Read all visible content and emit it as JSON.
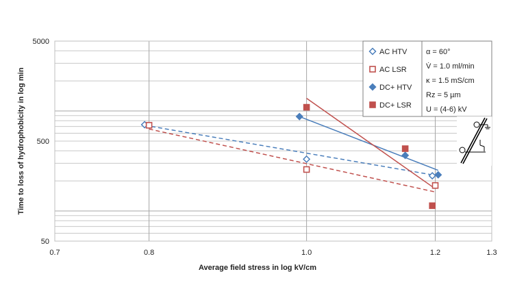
{
  "chart_data": {
    "type": "scatter",
    "xlabel": "Average field stress in log kV/cm",
    "ylabel": "Time to loss of hydrophobicity in log min",
    "xscale": "log",
    "yscale": "log",
    "xlim": [
      0.7,
      1.3
    ],
    "ylim": [
      50,
      5000
    ],
    "x_ticks": [
      0.7,
      0.8,
      1.0,
      1.2,
      1.3
    ],
    "x_tick_labels": [
      "0.7",
      "0.8",
      "1.0",
      "1.2",
      "1.3"
    ],
    "y_ticks": [
      50,
      500,
      5000
    ],
    "y_tick_labels": [
      "50",
      "500",
      "5000"
    ],
    "grid": "horizontal",
    "series": [
      {
        "name": "AC HTV",
        "marker": "open-diamond",
        "color": "#4a7ebb",
        "points": [
          [
            0.795,
            730
          ],
          [
            1.0,
            330
          ],
          [
            1.195,
            225
          ]
        ],
        "trend": {
          "style": "dashed",
          "color": "#4a7ebb",
          "from": [
            0.795,
            720
          ],
          "to": [
            1.195,
            230
          ]
        }
      },
      {
        "name": "AC LSR",
        "marker": "open-square",
        "color": "#c0504d",
        "points": [
          [
            0.8,
            720
          ],
          [
            1.0,
            260
          ],
          [
            1.2,
            180
          ]
        ],
        "trend": {
          "style": "dashed",
          "color": "#c0504d",
          "from": [
            0.8,
            660
          ],
          "to": [
            1.2,
            155
          ]
        }
      },
      {
        "name": "DC+ HTV",
        "marker": "filled-diamond",
        "color": "#4a7ebb",
        "points": [
          [
            0.99,
            880
          ],
          [
            1.15,
            360
          ],
          [
            1.205,
            230
          ]
        ],
        "trend": {
          "style": "solid",
          "color": "#4a7ebb",
          "from": [
            0.99,
            880
          ],
          "to": [
            1.205,
            255
          ]
        }
      },
      {
        "name": "DC+ LSR",
        "marker": "filled-square",
        "color": "#c0504d",
        "points": [
          [
            1.0,
            1090
          ],
          [
            1.15,
            420
          ],
          [
            1.195,
            113
          ]
        ],
        "trend": {
          "style": "solid",
          "color": "#c0504d",
          "from": [
            1.0,
            1340
          ],
          "to": [
            1.195,
            175
          ]
        }
      }
    ]
  },
  "conditions": {
    "alpha": "α = 60°",
    "flow_rate": "V̇ = 1.0 ml/min",
    "conductivity": "κ = 1.5 mS/cm",
    "roughness": "Rz = 5 µm",
    "voltage": "U = (4-6) kV"
  },
  "inset_icon": "inclined-plane-electrode-icon"
}
